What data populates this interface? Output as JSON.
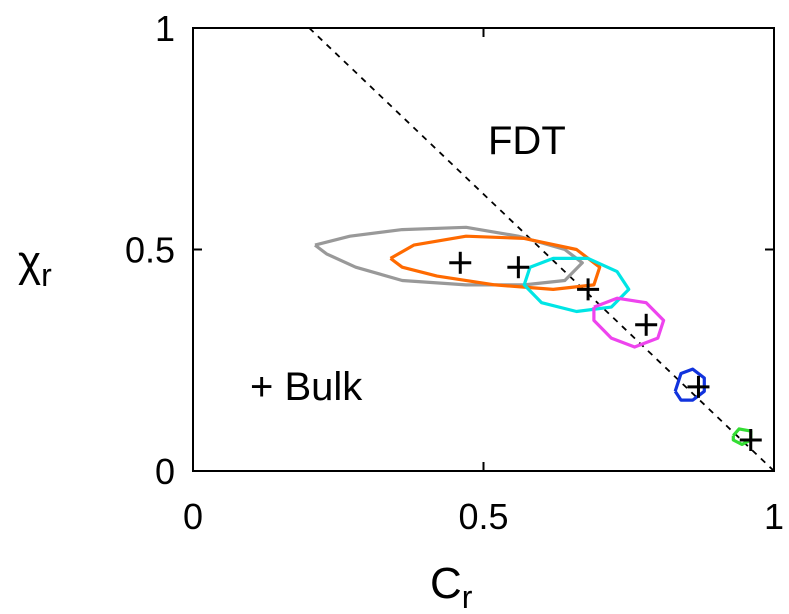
{
  "chart_data": {
    "type": "scatter",
    "xlabel_main": "C",
    "xlabel_sub": "r",
    "ylabel_main": "χ",
    "ylabel_sub": "r",
    "xlim": [
      0,
      1
    ],
    "ylim": [
      0,
      1
    ],
    "x_ticks": [
      {
        "value": 0,
        "label": "0"
      },
      {
        "value": 0.5,
        "label": "0.5"
      },
      {
        "value": 1,
        "label": "1"
      }
    ],
    "y_ticks": [
      {
        "value": 0,
        "label": "0"
      },
      {
        "value": 0.5,
        "label": "0.5"
      },
      {
        "value": 1,
        "label": "1"
      }
    ],
    "annotations": {
      "fdt": "FDT",
      "bulk": "+ Bulk"
    },
    "fdt_line": {
      "x": [
        0.2,
        1.0
      ],
      "y": [
        1.0,
        0.0
      ],
      "style": "dashed"
    },
    "bulk_points": [
      {
        "x": 0.46,
        "y": 0.47
      },
      {
        "x": 0.56,
        "y": 0.46
      },
      {
        "x": 0.68,
        "y": 0.41
      },
      {
        "x": 0.78,
        "y": 0.33
      },
      {
        "x": 0.87,
        "y": 0.19
      },
      {
        "x": 0.96,
        "y": 0.07
      }
    ],
    "series": [
      {
        "color": "#999999",
        "points": [
          [
            0.21,
            0.51
          ],
          [
            0.27,
            0.53
          ],
          [
            0.36,
            0.545
          ],
          [
            0.47,
            0.55
          ],
          [
            0.56,
            0.53
          ],
          [
            0.64,
            0.5
          ],
          [
            0.67,
            0.47
          ],
          [
            0.64,
            0.43
          ],
          [
            0.57,
            0.42
          ],
          [
            0.47,
            0.42
          ],
          [
            0.36,
            0.43
          ],
          [
            0.28,
            0.46
          ],
          [
            0.23,
            0.49
          ],
          [
            0.21,
            0.51
          ]
        ]
      },
      {
        "color": "#ff6a00",
        "points": [
          [
            0.34,
            0.48
          ],
          [
            0.38,
            0.51
          ],
          [
            0.47,
            0.53
          ],
          [
            0.57,
            0.525
          ],
          [
            0.66,
            0.5
          ],
          [
            0.7,
            0.46
          ],
          [
            0.69,
            0.42
          ],
          [
            0.62,
            0.41
          ],
          [
            0.52,
            0.42
          ],
          [
            0.42,
            0.44
          ],
          [
            0.36,
            0.46
          ],
          [
            0.34,
            0.48
          ]
        ]
      },
      {
        "color": "#00e5e5",
        "points": [
          [
            0.58,
            0.46
          ],
          [
            0.62,
            0.48
          ],
          [
            0.68,
            0.48
          ],
          [
            0.73,
            0.45
          ],
          [
            0.75,
            0.41
          ],
          [
            0.72,
            0.37
          ],
          [
            0.66,
            0.36
          ],
          [
            0.6,
            0.38
          ],
          [
            0.57,
            0.42
          ],
          [
            0.58,
            0.46
          ]
        ]
      },
      {
        "color": "#ee44ee",
        "points": [
          [
            0.69,
            0.37
          ],
          [
            0.73,
            0.39
          ],
          [
            0.78,
            0.38
          ],
          [
            0.81,
            0.34
          ],
          [
            0.8,
            0.3
          ],
          [
            0.76,
            0.28
          ],
          [
            0.72,
            0.3
          ],
          [
            0.69,
            0.34
          ],
          [
            0.69,
            0.37
          ]
        ]
      },
      {
        "color": "#1133dd",
        "points": [
          [
            0.83,
            0.18
          ],
          [
            0.84,
            0.22
          ],
          [
            0.86,
            0.23
          ],
          [
            0.88,
            0.21
          ],
          [
            0.88,
            0.18
          ],
          [
            0.86,
            0.16
          ],
          [
            0.84,
            0.16
          ],
          [
            0.83,
            0.18
          ]
        ]
      },
      {
        "color": "#33dd33",
        "points": [
          [
            0.93,
            0.08
          ],
          [
            0.94,
            0.095
          ],
          [
            0.96,
            0.09
          ],
          [
            0.96,
            0.07
          ],
          [
            0.945,
            0.06
          ],
          [
            0.93,
            0.07
          ],
          [
            0.93,
            0.08
          ]
        ]
      }
    ]
  }
}
